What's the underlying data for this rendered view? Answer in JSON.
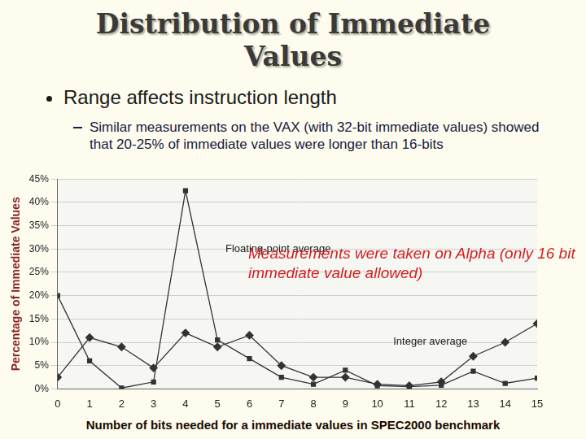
{
  "slide": {
    "title": "Distribution of Immediate Values",
    "bullet": "Range affects instruction length",
    "sub_bullet": "Similar measurements on the VAX (with 32-bit immediate values) showed that 20-25% of immediate values were longer than 16-bits"
  },
  "chart_data": {
    "type": "line",
    "x_label": "Number of bits needed for a immediate values in SPEC2000 benchmark",
    "y_label": "Percentage of Immediate Values",
    "annotations": [
      "Measurements were taken on Alpha (only 16 bit immediate value allowed)"
    ],
    "x": [
      0,
      1,
      2,
      3,
      4,
      5,
      6,
      7,
      8,
      9,
      10,
      11,
      12,
      13,
      14,
      15
    ],
    "series": [
      {
        "name": "Floating-point average",
        "color": "#333333",
        "marker": "square",
        "values": [
          20,
          6,
          0.2,
          1.5,
          42.5,
          10.5,
          6.5,
          2.5,
          1,
          4,
          0.7,
          0.5,
          0.8,
          3.8,
          1.2,
          2.3
        ]
      },
      {
        "name": "Integer average",
        "color": "#333333",
        "marker": "diamond",
        "values": [
          2.5,
          11,
          9,
          4.5,
          12,
          9,
          11.5,
          5,
          2.5,
          2.5,
          1,
          0.7,
          1.5,
          7,
          10,
          14
        ]
      }
    ],
    "xlim": [
      0,
      15
    ],
    "xticks": [
      0,
      1,
      2,
      3,
      4,
      5,
      6,
      7,
      8,
      9,
      10,
      11,
      12,
      13,
      14,
      15
    ],
    "ylim": [
      0,
      45
    ],
    "yticks": [
      {
        "value": 0,
        "label": "0%"
      },
      {
        "value": 5,
        "label": "5%"
      },
      {
        "value": 10,
        "label": "10%"
      },
      {
        "value": 15,
        "label": "15%"
      },
      {
        "value": 20,
        "label": "20%"
      },
      {
        "value": 25,
        "label": "25%"
      },
      {
        "value": 30,
        "label": "30%"
      },
      {
        "value": 35,
        "label": "35%"
      },
      {
        "value": 40,
        "label": "40%"
      },
      {
        "value": 45,
        "label": "45%"
      }
    ],
    "grid": true
  }
}
